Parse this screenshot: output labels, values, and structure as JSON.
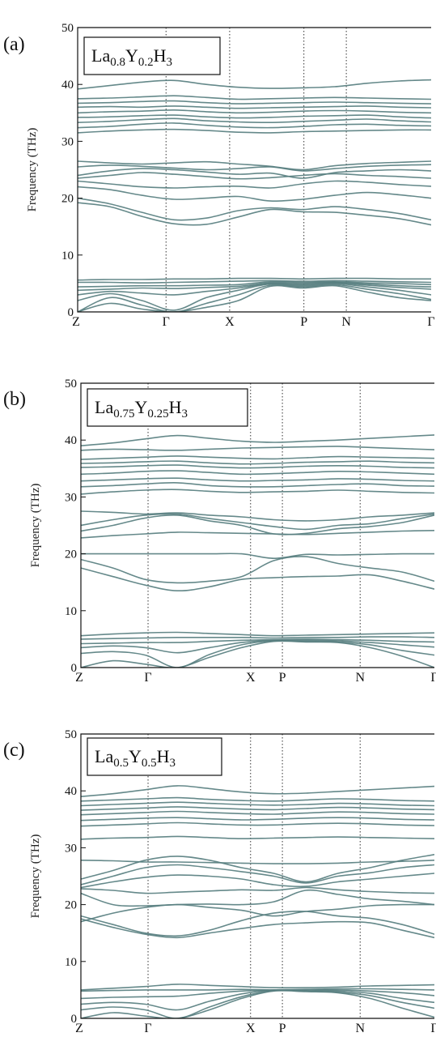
{
  "colors": {
    "band": "#587f80",
    "axis": "#111111"
  },
  "chart_data": [
    {
      "type": "line",
      "panel_label": "(a)",
      "compound": {
        "base1": "La",
        "sub1": "0.8",
        "base2": "Y",
        "sub2": "0.2",
        "base3": "H",
        "sub3": "3"
      },
      "ylabel": "Frequency (THz)",
      "ylim": [
        0,
        50
      ],
      "yticks": [
        "0",
        "10",
        "20",
        "30",
        "40",
        "50"
      ],
      "kpoints": [
        {
          "label": "Z",
          "pos": 0
        },
        {
          "label": "Γ",
          "pos": 0.25
        },
        {
          "label": "X",
          "pos": 0.43
        },
        {
          "label": "P",
          "pos": 0.64
        },
        {
          "label": "N",
          "pos": 0.76
        },
        {
          "label": "Γ",
          "pos": 1.0
        }
      ],
      "bands": [
        [
          0,
          1.5,
          0.5,
          0,
          0.8,
          2.0,
          4.5,
          4.2,
          4.6,
          3.5,
          2.5,
          2.0
        ],
        [
          0,
          2.5,
          1.2,
          0,
          1.5,
          3.0,
          4.7,
          4.4,
          4.8,
          4.0,
          3.2,
          2.2
        ],
        [
          2,
          3.2,
          2.0,
          0.3,
          2.5,
          3.8,
          4.9,
          4.6,
          5.0,
          4.4,
          3.8,
          3.0
        ],
        [
          3,
          3.6,
          3.3,
          3.0,
          3.6,
          4.2,
          5.0,
          4.8,
          5.1,
          4.7,
          4.3,
          4.0
        ],
        [
          3.8,
          4.0,
          4.2,
          4.1,
          4.3,
          4.5,
          5.1,
          5.0,
          5.2,
          4.9,
          4.6,
          4.4
        ],
        [
          4.4,
          4.5,
          4.6,
          4.6,
          4.7,
          4.8,
          5.3,
          5.2,
          5.3,
          5.1,
          5.0,
          4.8
        ],
        [
          5.2,
          5.2,
          5.1,
          5.2,
          5.3,
          5.4,
          5.5,
          5.4,
          5.5,
          5.4,
          5.3,
          5.2
        ],
        [
          5.6,
          5.7,
          5.7,
          5.8,
          5.8,
          5.9,
          5.9,
          5.8,
          5.9,
          5.9,
          5.8,
          5.8
        ],
        [
          19.2,
          18.5,
          16.8,
          15.5,
          15.4,
          16.7,
          18.0,
          17.6,
          17.5,
          17.0,
          16.4,
          15.3
        ],
        [
          20.0,
          19.0,
          17.5,
          16.2,
          16.5,
          17.8,
          18.3,
          18.0,
          18.5,
          18.0,
          17.3,
          16.2
        ],
        [
          22.0,
          21.5,
          20.5,
          19.8,
          20.0,
          20.3,
          19.5,
          19.8,
          20.5,
          21.0,
          20.6,
          20.0
        ],
        [
          23.0,
          22.5,
          22.0,
          21.8,
          22.0,
          22.1,
          21.8,
          22.5,
          23.0,
          22.8,
          22.4,
          22.1
        ],
        [
          23.5,
          24.0,
          24.5,
          24.2,
          23.8,
          23.4,
          23.6,
          24.0,
          24.3,
          24.0,
          23.8,
          23.5
        ],
        [
          24.0,
          24.8,
          25.2,
          25.0,
          24.6,
          24.2,
          24.4,
          23.5,
          24.5,
          24.8,
          25.0,
          24.8
        ],
        [
          25.5,
          25.8,
          25.6,
          25.3,
          25.0,
          25.2,
          25.5,
          24.8,
          25.2,
          25.6,
          25.8,
          25.9
        ],
        [
          26.5,
          26.2,
          26.0,
          26.2,
          26.4,
          26.0,
          25.6,
          25.0,
          25.7,
          26.1,
          26.3,
          26.5
        ],
        [
          31.5,
          31.8,
          32.0,
          32.1,
          31.9,
          31.6,
          31.5,
          31.7,
          31.8,
          31.9,
          32.0,
          32.0
        ],
        [
          32.4,
          32.6,
          33.0,
          33.2,
          32.8,
          32.5,
          32.4,
          32.6,
          32.9,
          33.0,
          32.8,
          32.7
        ],
        [
          33.3,
          33.5,
          33.8,
          34.0,
          33.6,
          33.4,
          33.3,
          33.5,
          33.7,
          33.9,
          33.6,
          33.4
        ],
        [
          34.2,
          34.3,
          34.5,
          34.6,
          34.3,
          34.1,
          34.2,
          34.4,
          34.5,
          34.6,
          34.3,
          34.1
        ],
        [
          35.0,
          35.2,
          35.3,
          35.5,
          35.2,
          35.0,
          35.1,
          35.3,
          35.4,
          35.3,
          35.1,
          35.0
        ],
        [
          36.0,
          36.1,
          36.0,
          36.2,
          36.0,
          35.8,
          35.9,
          36.0,
          36.1,
          36.2,
          36.0,
          35.9
        ],
        [
          36.7,
          36.8,
          37.0,
          37.1,
          36.8,
          36.6,
          36.7,
          36.8,
          36.9,
          36.8,
          36.7,
          36.6
        ],
        [
          37.5,
          37.6,
          37.8,
          38.0,
          37.7,
          37.4,
          37.5,
          37.6,
          37.7,
          37.6,
          37.5,
          37.4
        ],
        [
          39.2,
          39.8,
          40.4,
          40.7,
          40.0,
          39.5,
          39.3,
          39.4,
          39.6,
          40.2,
          40.6,
          40.8
        ]
      ]
    },
    {
      "type": "line",
      "panel_label": "(b)",
      "compound": {
        "base1": "La",
        "sub1": "0.75",
        "base2": "Y",
        "sub2": "0.25",
        "base3": "H",
        "sub3": "3"
      },
      "ylabel": "Frequency (THz)",
      "ylim": [
        0,
        50
      ],
      "yticks": [
        "0",
        "10",
        "20",
        "30",
        "40",
        "50"
      ],
      "kpoints": [
        {
          "label": "Z",
          "pos": 0
        },
        {
          "label": "Γ",
          "pos": 0.19
        },
        {
          "label": "X",
          "pos": 0.48
        },
        {
          "label": "P",
          "pos": 0.57
        },
        {
          "label": "N",
          "pos": 0.79
        },
        {
          "label": "Γ",
          "pos": 1.0
        }
      ],
      "bands": [
        [
          0,
          1.2,
          0.6,
          0,
          1.8,
          3.5,
          4.6,
          4.5,
          4.4,
          3.5,
          2.0,
          0
        ],
        [
          2.5,
          2.8,
          2.2,
          0,
          2.3,
          4.0,
          4.7,
          4.6,
          4.5,
          4.0,
          3.0,
          2.2
        ],
        [
          3.5,
          3.8,
          3.5,
          2.6,
          3.5,
          4.4,
          4.8,
          4.8,
          4.7,
          4.4,
          4.0,
          3.6
        ],
        [
          4.2,
          4.3,
          4.4,
          4.4,
          4.6,
          4.8,
          4.9,
          5.0,
          4.9,
          4.8,
          4.6,
          4.5
        ],
        [
          5.0,
          5.1,
          5.2,
          5.3,
          5.3,
          5.3,
          5.2,
          5.3,
          5.3,
          5.4,
          5.4,
          5.3
        ],
        [
          5.6,
          5.9,
          6.1,
          6.2,
          6.0,
          5.8,
          5.6,
          5.7,
          5.8,
          5.9,
          6.0,
          6.1
        ],
        [
          17.5,
          16.0,
          14.5,
          13.5,
          14.2,
          15.5,
          15.8,
          16.0,
          16.1,
          16.3,
          15.2,
          13.8
        ],
        [
          19.0,
          17.5,
          15.5,
          14.9,
          15.2,
          16.0,
          18.8,
          19.5,
          18.3,
          17.5,
          16.8,
          15.2
        ],
        [
          20.0,
          20.0,
          20.0,
          20.0,
          20.0,
          20.0,
          19.2,
          19.9,
          19.8,
          19.9,
          20.0,
          20.0
        ],
        [
          22.8,
          23.2,
          23.5,
          23.8,
          23.7,
          23.6,
          23.5,
          23.4,
          23.6,
          23.8,
          24.0,
          24.1
        ],
        [
          24.0,
          25.0,
          26.3,
          26.8,
          25.8,
          25.0,
          23.5,
          23.6,
          24.4,
          24.8,
          25.5,
          26.8
        ],
        [
          25.0,
          26.0,
          26.8,
          27.0,
          26.2,
          25.5,
          24.8,
          24.3,
          25.0,
          25.3,
          26.2,
          27.0
        ],
        [
          27.5,
          27.3,
          27.0,
          27.2,
          26.8,
          26.5,
          26.0,
          25.8,
          26.0,
          26.5,
          26.8,
          27.2
        ],
        [
          30.5,
          30.9,
          31.2,
          31.3,
          31.0,
          30.8,
          30.9,
          31.0,
          31.2,
          31.0,
          30.8,
          30.7
        ],
        [
          31.8,
          32.0,
          32.3,
          32.5,
          32.0,
          31.8,
          31.8,
          32.0,
          32.2,
          32.3,
          32.0,
          31.9
        ],
        [
          32.8,
          33.0,
          33.2,
          33.3,
          33.0,
          32.8,
          32.9,
          33.0,
          33.2,
          33.1,
          32.9,
          32.8
        ],
        [
          34.0,
          34.2,
          34.5,
          34.6,
          34.3,
          34.0,
          34.1,
          34.3,
          34.5,
          34.4,
          34.2,
          34.0
        ],
        [
          35.2,
          35.3,
          35.5,
          35.6,
          35.3,
          35.1,
          35.2,
          35.4,
          35.5,
          35.4,
          35.2,
          35.1
        ],
        [
          35.9,
          36.0,
          36.2,
          36.3,
          36.0,
          35.8,
          35.9,
          36.1,
          36.2,
          36.3,
          36.1,
          36.0
        ],
        [
          36.6,
          36.8,
          37.0,
          37.2,
          37.0,
          36.8,
          36.7,
          36.9,
          37.1,
          37.0,
          36.9,
          36.8
        ],
        [
          38.2,
          38.4,
          38.3,
          38.2,
          38.4,
          38.6,
          38.7,
          38.8,
          38.9,
          38.7,
          38.5,
          38.3
        ],
        [
          39.0,
          39.5,
          40.2,
          40.8,
          40.3,
          39.8,
          39.6,
          39.8,
          40.0,
          40.3,
          40.6,
          40.9
        ]
      ]
    },
    {
      "type": "line",
      "panel_label": "(c)",
      "compound": {
        "base1": "La",
        "sub1": "0.5",
        "base2": "Y",
        "sub2": "0.5",
        "base3": "H",
        "sub3": "3"
      },
      "ylabel": "Frequency (THz)",
      "ylim": [
        0,
        50
      ],
      "yticks": [
        "0",
        "10",
        "20",
        "30",
        "40",
        "50"
      ],
      "kpoints": [
        {
          "label": "Z",
          "pos": 0
        },
        {
          "label": "Γ",
          "pos": 0.19
        },
        {
          "label": "X",
          "pos": 0.48
        },
        {
          "label": "P",
          "pos": 0.57
        },
        {
          "label": "N",
          "pos": 0.79
        },
        {
          "label": "Γ",
          "pos": 1.0
        }
      ],
      "bands": [
        [
          0,
          1.0,
          0.4,
          0,
          1.5,
          3.5,
          4.8,
          4.7,
          4.5,
          3.5,
          1.8,
          0.2
        ],
        [
          1.5,
          2.0,
          1.5,
          0,
          2.0,
          3.8,
          4.9,
          4.8,
          4.6,
          4.0,
          2.8,
          1.8
        ],
        [
          2.5,
          2.8,
          2.5,
          1.5,
          3.0,
          4.3,
          5.0,
          5.0,
          4.8,
          4.4,
          3.5,
          2.8
        ],
        [
          3.5,
          3.7,
          3.8,
          3.9,
          4.4,
          4.8,
          5.0,
          5.0,
          5.0,
          4.8,
          4.5,
          4.0
        ],
        [
          4.8,
          4.9,
          5.0,
          5.0,
          5.0,
          5.1,
          5.0,
          5.1,
          5.2,
          5.2,
          5.1,
          5.0
        ],
        [
          5.0,
          5.3,
          5.6,
          6.0,
          5.8,
          5.6,
          5.4,
          5.4,
          5.5,
          5.7,
          5.8,
          5.9
        ],
        [
          17.5,
          16.0,
          14.8,
          14.2,
          15.0,
          15.8,
          16.5,
          16.8,
          17.0,
          16.8,
          15.5,
          14.2
        ],
        [
          18.0,
          16.5,
          15.0,
          14.5,
          15.5,
          17.2,
          18.5,
          18.8,
          18.0,
          17.6,
          16.5,
          14.8
        ],
        [
          17.0,
          18.5,
          19.5,
          20.0,
          19.5,
          19.0,
          18.0,
          18.8,
          19.2,
          19.8,
          20.0,
          20.0
        ],
        [
          22.0,
          20.0,
          19.8,
          20.0,
          20.1,
          20.0,
          20.5,
          22.5,
          21.8,
          21.0,
          20.6,
          20.0
        ],
        [
          22.8,
          22.5,
          22.0,
          22.2,
          22.4,
          22.6,
          22.5,
          23.0,
          22.6,
          22.3,
          22.1,
          22.0
        ],
        [
          23.0,
          24.0,
          24.8,
          25.2,
          25.0,
          24.5,
          23.5,
          23.2,
          24.0,
          24.5,
          25.0,
          25.5
        ],
        [
          23.5,
          25.0,
          26.5,
          27.0,
          26.5,
          25.8,
          25.0,
          23.8,
          25.0,
          25.6,
          26.5,
          27.0
        ],
        [
          24.5,
          26.0,
          27.8,
          28.5,
          27.8,
          26.5,
          25.5,
          24.0,
          25.5,
          26.5,
          27.8,
          28.8
        ],
        [
          27.8,
          27.7,
          27.5,
          27.5,
          27.4,
          27.3,
          27.2,
          27.2,
          27.3,
          27.5,
          27.6,
          27.8
        ],
        [
          31.5,
          31.7,
          31.8,
          32.0,
          31.8,
          31.6,
          31.7,
          31.8,
          31.9,
          31.8,
          31.7,
          31.6
        ],
        [
          33.8,
          34.0,
          34.2,
          34.4,
          34.2,
          34.0,
          34.0,
          34.2,
          34.3,
          34.2,
          34.0,
          33.9
        ],
        [
          34.8,
          35.0,
          35.2,
          35.3,
          35.1,
          34.9,
          35.0,
          35.2,
          35.3,
          35.2,
          35.0,
          34.9
        ],
        [
          35.8,
          36.0,
          36.2,
          36.4,
          36.2,
          36.0,
          35.9,
          36.1,
          36.3,
          36.2,
          36.0,
          35.9
        ],
        [
          36.6,
          36.8,
          37.0,
          37.2,
          37.0,
          36.8,
          36.7,
          36.9,
          37.1,
          37.0,
          36.8,
          36.7
        ],
        [
          37.4,
          37.6,
          37.8,
          38.0,
          37.8,
          37.6,
          37.5,
          37.6,
          37.8,
          37.7,
          37.5,
          37.4
        ],
        [
          38.2,
          38.4,
          38.6,
          38.8,
          38.5,
          38.3,
          38.2,
          38.4,
          38.6,
          38.5,
          38.3,
          38.2
        ],
        [
          39.0,
          39.5,
          40.2,
          40.9,
          40.4,
          39.8,
          39.5,
          39.6,
          39.9,
          40.2,
          40.5,
          40.8
        ]
      ]
    }
  ]
}
